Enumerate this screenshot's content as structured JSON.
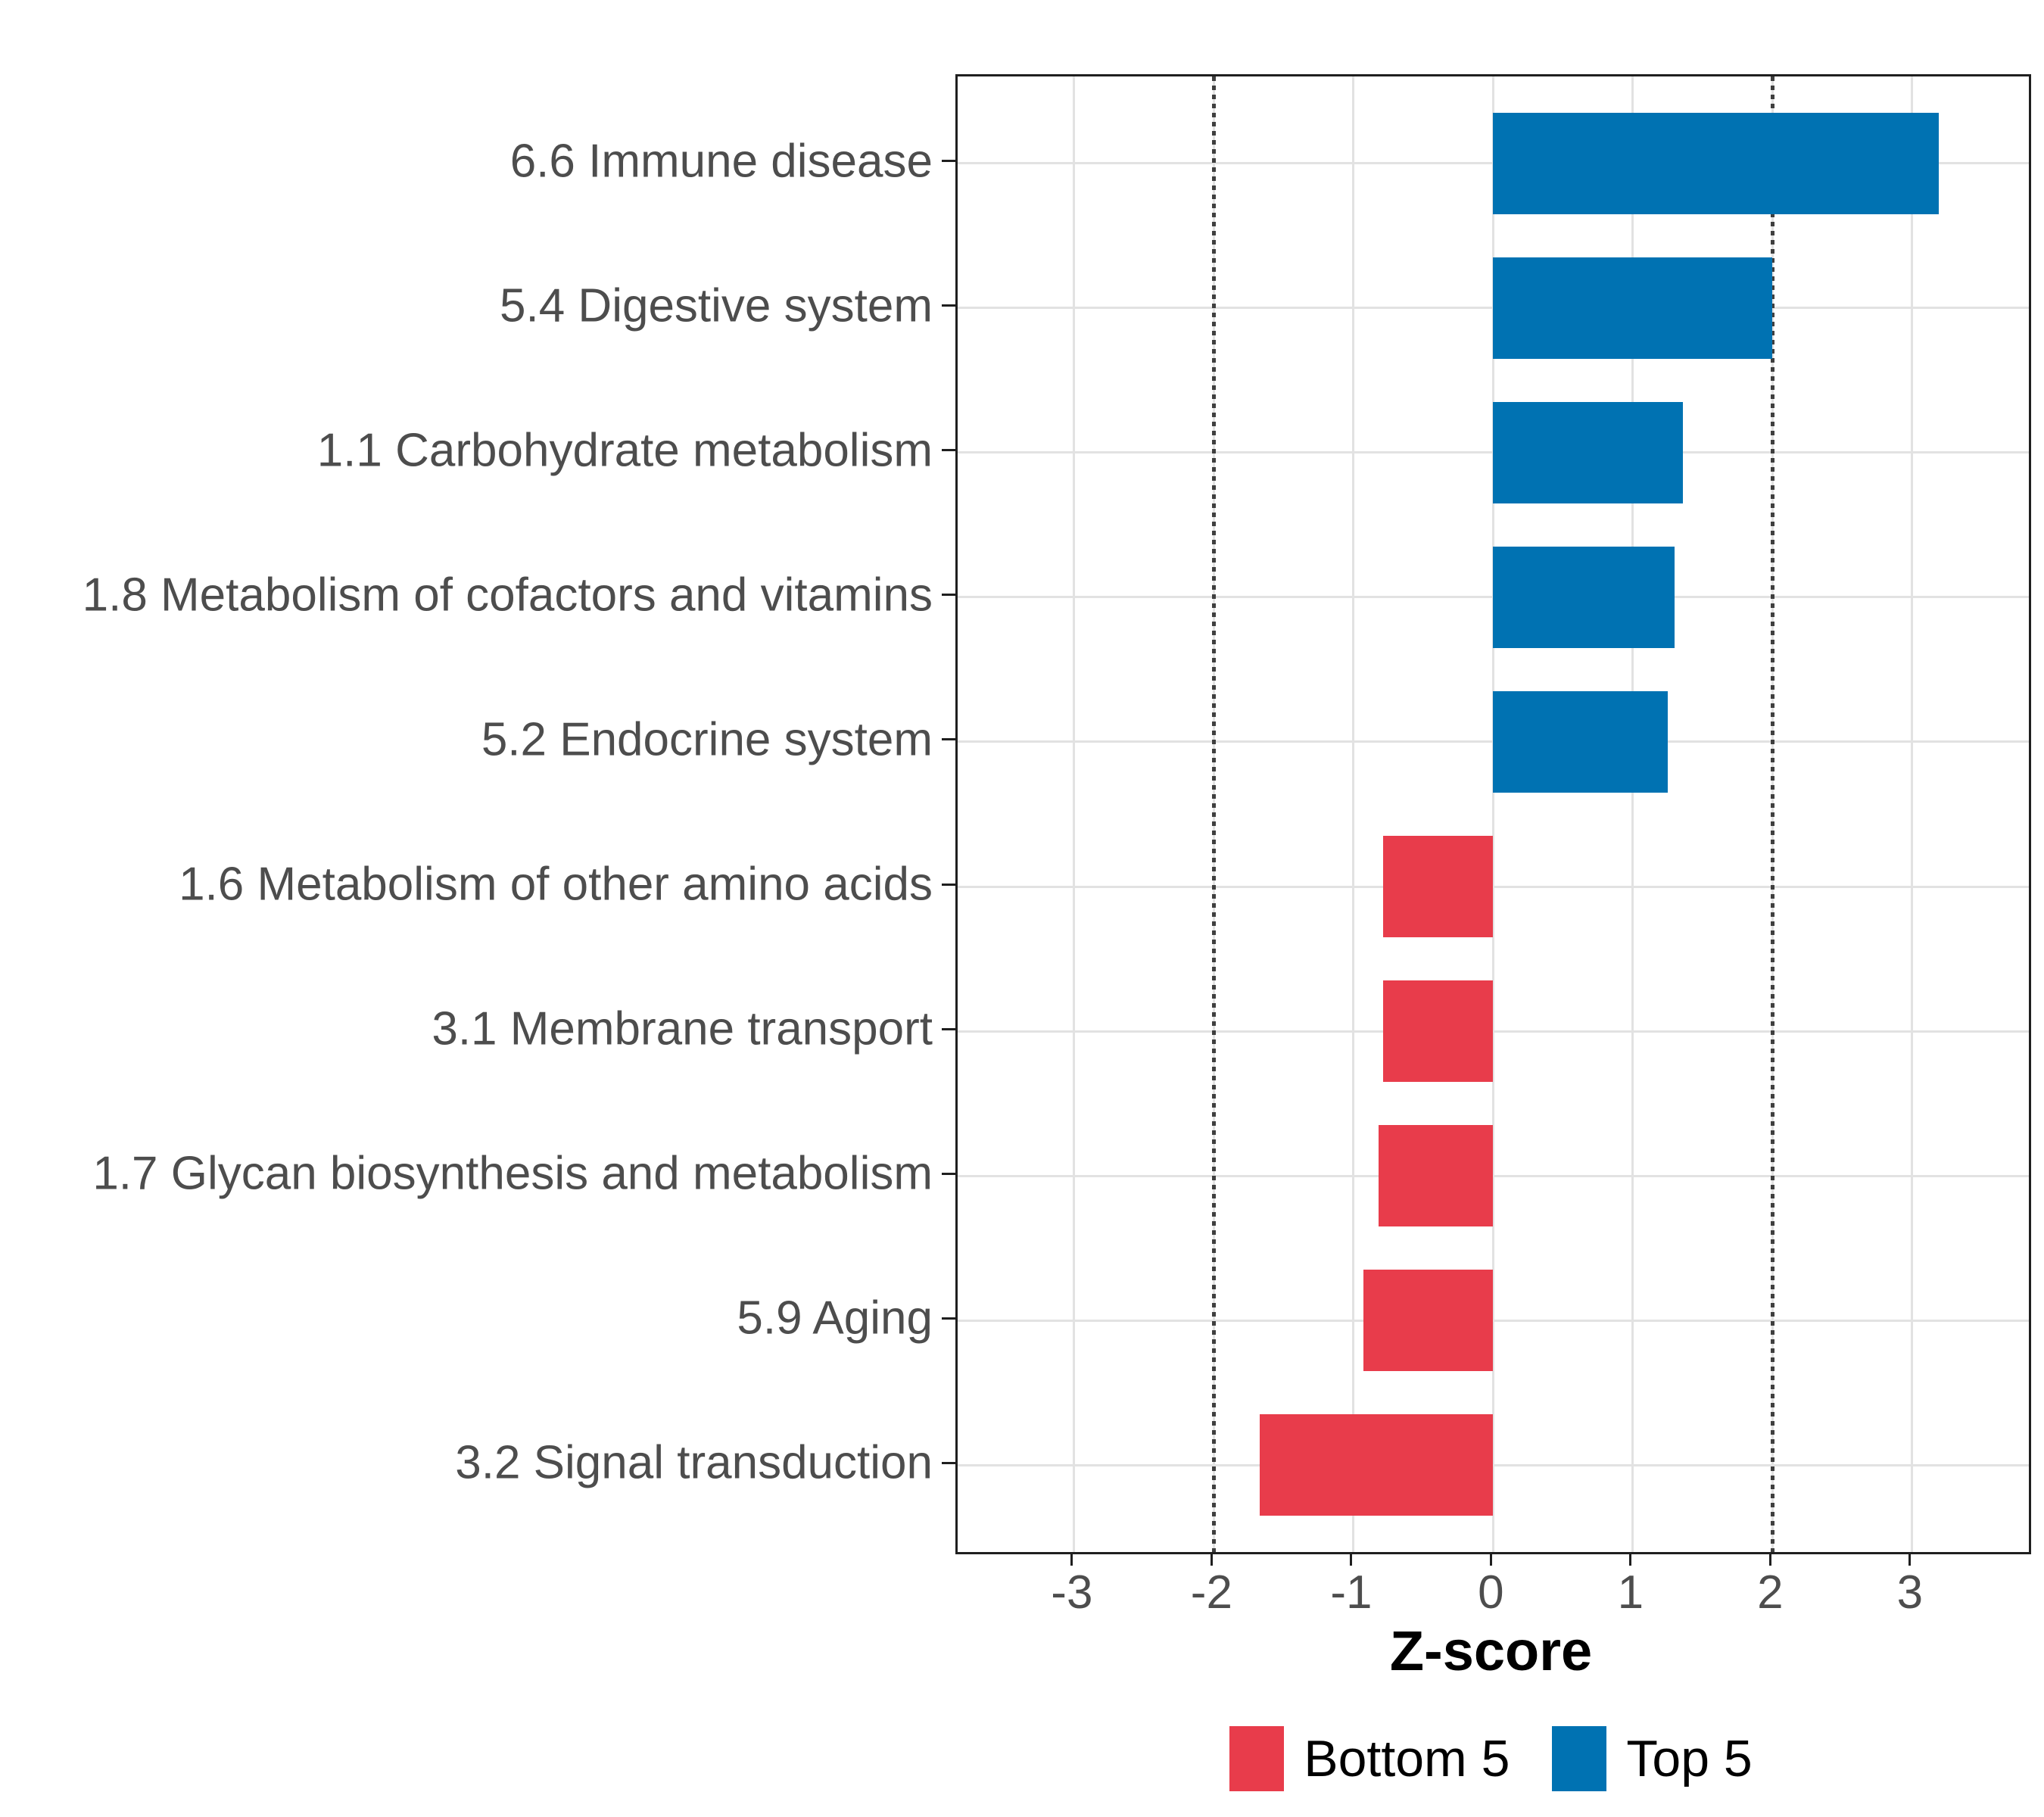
{
  "chart_data": {
    "type": "bar",
    "orientation": "horizontal",
    "title": "",
    "xlabel": "Z-score",
    "ylabel": "",
    "categories": [
      "6.6 Immune disease",
      "5.4 Digestive system",
      "1.1 Carbohydrate metabolism",
      "1.8 Metabolism of cofactors and vitamins",
      "5.2 Endocrine system",
      "1.6 Metabolism of other amino acids",
      "3.1 Membrane transport",
      "1.7 Glycan biosynthesis and metabolism",
      "5.9 Aging",
      "3.2 Signal transduction"
    ],
    "values": [
      3.19,
      2.0,
      1.36,
      1.3,
      1.25,
      -0.79,
      -0.79,
      -0.82,
      -0.93,
      -1.67
    ],
    "groups": [
      "Top 5",
      "Top 5",
      "Top 5",
      "Top 5",
      "Top 5",
      "Bottom 5",
      "Bottom 5",
      "Bottom 5",
      "Bottom 5",
      "Bottom 5"
    ],
    "colors": {
      "Top 5": "#0072B2",
      "Bottom 5": "#E83C4B"
    },
    "x_ticks": [
      -3,
      -2,
      -1,
      0,
      1,
      2,
      3
    ],
    "x_tick_labels": [
      "-3",
      "-2",
      "-1",
      "0",
      "1",
      "2",
      "3"
    ],
    "xlim": [
      -3.834,
      3.835
    ],
    "reference_lines": [
      -2,
      2
    ],
    "grid": true,
    "bar_width_fraction": 0.7,
    "legend_position": "bottom",
    "legend": [
      {
        "label": "Bottom 5",
        "color": "#E83C4B"
      },
      {
        "label": "Top 5",
        "color": "#0072B2"
      }
    ],
    "style": {
      "panel_border_color": "#1f1f1f",
      "gridline_color": "#e2e2e2",
      "reference_line_color": "#3f3f3f",
      "axis_text_color": "#4d4d4d",
      "background_color": "#ffffff"
    }
  }
}
